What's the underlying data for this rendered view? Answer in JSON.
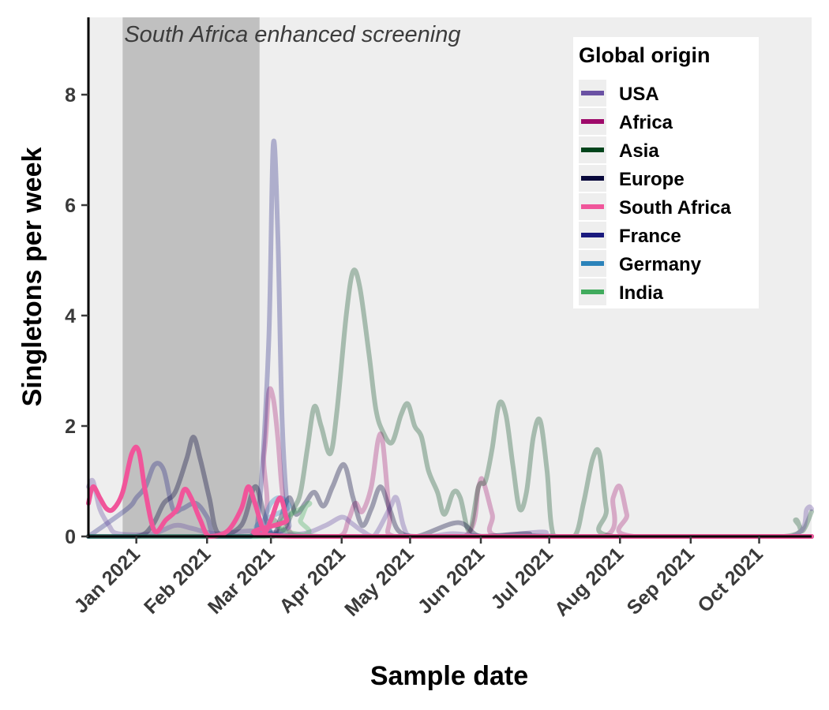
{
  "chart_data": {
    "type": "line",
    "title": "",
    "xlabel": "Sample date",
    "ylabel": "Singletons per week",
    "x_ticks": [
      "Jan 2021",
      "Feb 2021",
      "Mar 2021",
      "Apr 2021",
      "May 2021",
      "Jun 2021",
      "Jul 2021",
      "Aug 2021",
      "Sep 2021",
      "Oct 2021"
    ],
    "x_tick_dates": [
      "2021-01-01",
      "2021-02-01",
      "2021-03-01",
      "2021-04-01",
      "2021-05-01",
      "2021-06-01",
      "2021-07-01",
      "2021-08-01",
      "2021-09-01",
      "2021-10-01"
    ],
    "xlim": [
      "2020-12-11",
      "2021-10-24"
    ],
    "y_ticks": [
      0,
      2,
      4,
      6,
      8
    ],
    "ylim": [
      0,
      9.4
    ],
    "grid": false,
    "background_color": "#eeeeee",
    "legend": {
      "title": "Global origin",
      "position": "top-right"
    },
    "annotations": [
      {
        "text": "South Africa enhanced screening",
        "type": "shaded-region",
        "x_range": [
          "2020-12-26",
          "2021-02-24"
        ],
        "color": "#c0c0c0"
      }
    ],
    "series": [
      {
        "name": "USA",
        "color": "#6a51a3",
        "opacity": 0.35,
        "points": [
          [
            "2020-12-11",
            0.9
          ],
          [
            "2020-12-13",
            1.0
          ],
          [
            "2020-12-16",
            0.5
          ],
          [
            "2020-12-20",
            0.2
          ],
          [
            "2020-12-24",
            0.05
          ],
          [
            "2021-01-08",
            0.05
          ],
          [
            "2021-01-18",
            0.2
          ],
          [
            "2021-01-25",
            0.15
          ],
          [
            "2021-02-05",
            0.05
          ],
          [
            "2021-02-20",
            0.1
          ],
          [
            "2021-03-01",
            0.05
          ],
          [
            "2021-03-15",
            0.05
          ],
          [
            "2021-03-25",
            0.2
          ],
          [
            "2021-04-01",
            0.35
          ],
          [
            "2021-04-05",
            0.25
          ],
          [
            "2021-04-10",
            0.1
          ],
          [
            "2021-04-15",
            0.0
          ],
          [
            "2021-04-22",
            0.5
          ],
          [
            "2021-04-25",
            0.7
          ],
          [
            "2021-04-28",
            0.2
          ],
          [
            "2021-05-01",
            0.0
          ],
          [
            "2021-05-10",
            0.0
          ],
          [
            "2021-05-20",
            0.05
          ],
          [
            "2021-06-05",
            0.0
          ],
          [
            "2021-06-28",
            0.08
          ],
          [
            "2021-07-05",
            0.0
          ],
          [
            "2021-09-01",
            0.0
          ],
          [
            "2021-10-15",
            0.0
          ],
          [
            "2021-10-22",
            0.5
          ],
          [
            "2021-10-24",
            0.5
          ]
        ]
      },
      {
        "name": "Africa",
        "color": "#9e0a6a",
        "opacity": 0.3,
        "points": [
          [
            "2020-12-11",
            0.0
          ],
          [
            "2021-02-20",
            0.0
          ],
          [
            "2021-02-26",
            1.5
          ],
          [
            "2021-02-28",
            2.6
          ],
          [
            "2021-03-02",
            2.5
          ],
          [
            "2021-03-04",
            1.8
          ],
          [
            "2021-03-06",
            0.8
          ],
          [
            "2021-03-09",
            0.1
          ],
          [
            "2021-03-15",
            0.0
          ],
          [
            "2021-03-31",
            0.0
          ],
          [
            "2021-04-04",
            0.3
          ],
          [
            "2021-04-07",
            0.6
          ],
          [
            "2021-04-10",
            0.45
          ],
          [
            "2021-04-14",
            0.9
          ],
          [
            "2021-04-17",
            1.75
          ],
          [
            "2021-04-19",
            1.7
          ],
          [
            "2021-04-22",
            0.4
          ],
          [
            "2021-04-24",
            0.0
          ],
          [
            "2021-05-25",
            0.0
          ],
          [
            "2021-05-31",
            0.9
          ],
          [
            "2021-06-02",
            1.0
          ],
          [
            "2021-06-06",
            0.4
          ],
          [
            "2021-06-09",
            0.0
          ],
          [
            "2021-07-25",
            0.0
          ],
          [
            "2021-07-29",
            0.7
          ],
          [
            "2021-08-01",
            0.9
          ],
          [
            "2021-08-04",
            0.4
          ],
          [
            "2021-08-07",
            0.0
          ],
          [
            "2021-10-24",
            0.0
          ]
        ]
      },
      {
        "name": "Asia",
        "color": "#00441b",
        "opacity": 0.3,
        "points": [
          [
            "2020-12-11",
            0.0
          ],
          [
            "2021-02-26",
            0.0
          ],
          [
            "2021-03-02",
            0.3
          ],
          [
            "2021-03-06",
            0.1
          ],
          [
            "2021-03-11",
            0.5
          ],
          [
            "2021-03-14",
            0.8
          ],
          [
            "2021-03-17",
            1.6
          ],
          [
            "2021-03-20",
            2.35
          ],
          [
            "2021-03-23",
            2.0
          ],
          [
            "2021-03-27",
            1.5
          ],
          [
            "2021-03-30",
            2.3
          ],
          [
            "2021-04-03",
            4.0
          ],
          [
            "2021-04-06",
            4.8
          ],
          [
            "2021-04-09",
            4.5
          ],
          [
            "2021-04-13",
            3.3
          ],
          [
            "2021-04-16",
            2.3
          ],
          [
            "2021-04-19",
            1.9
          ],
          [
            "2021-04-23",
            1.7
          ],
          [
            "2021-04-27",
            2.2
          ],
          [
            "2021-04-30",
            2.4
          ],
          [
            "2021-05-03",
            2.0
          ],
          [
            "2021-05-06",
            1.8
          ],
          [
            "2021-05-09",
            1.2
          ],
          [
            "2021-05-13",
            0.8
          ],
          [
            "2021-05-16",
            0.4
          ],
          [
            "2021-05-20",
            0.8
          ],
          [
            "2021-05-23",
            0.7
          ],
          [
            "2021-05-27",
            0.1
          ],
          [
            "2021-05-31",
            0.9
          ],
          [
            "2021-06-03",
            1.0
          ],
          [
            "2021-06-06",
            1.6
          ],
          [
            "2021-06-09",
            2.4
          ],
          [
            "2021-06-12",
            2.2
          ],
          [
            "2021-06-15",
            1.3
          ],
          [
            "2021-06-18",
            0.5
          ],
          [
            "2021-06-21",
            0.8
          ],
          [
            "2021-06-24",
            1.8
          ],
          [
            "2021-06-27",
            2.1
          ],
          [
            "2021-06-30",
            1.2
          ],
          [
            "2021-07-03",
            0.0
          ],
          [
            "2021-07-12",
            0.0
          ],
          [
            "2021-07-16",
            0.6
          ],
          [
            "2021-07-20",
            1.4
          ],
          [
            "2021-07-23",
            1.5
          ],
          [
            "2021-07-26",
            0.5
          ],
          [
            "2021-07-29",
            0.0
          ],
          [
            "2021-10-12",
            0.0
          ],
          [
            "2021-10-17",
            0.3
          ],
          [
            "2021-10-20",
            0.1
          ],
          [
            "2021-10-24",
            0.45
          ]
        ]
      },
      {
        "name": "Europe",
        "color": "#08083b",
        "opacity": 0.35,
        "points": [
          [
            "2020-12-11",
            0.0
          ],
          [
            "2021-01-01",
            0.0
          ],
          [
            "2021-01-08",
            0.2
          ],
          [
            "2021-01-13",
            0.6
          ],
          [
            "2021-01-18",
            0.8
          ],
          [
            "2021-01-23",
            1.4
          ],
          [
            "2021-01-26",
            1.8
          ],
          [
            "2021-01-29",
            1.4
          ],
          [
            "2021-02-02",
            0.7
          ],
          [
            "2021-02-06",
            0.05
          ],
          [
            "2021-02-16",
            0.2
          ],
          [
            "2021-02-22",
            0.9
          ],
          [
            "2021-02-26",
            0.4
          ],
          [
            "2021-03-02",
            0.0
          ],
          [
            "2021-03-05",
            0.3
          ],
          [
            "2021-03-09",
            0.7
          ],
          [
            "2021-03-12",
            0.4
          ],
          [
            "2021-03-16",
            0.6
          ],
          [
            "2021-03-20",
            0.8
          ],
          [
            "2021-03-24",
            0.55
          ],
          [
            "2021-03-28",
            0.9
          ],
          [
            "2021-04-02",
            1.3
          ],
          [
            "2021-04-06",
            0.7
          ],
          [
            "2021-04-10",
            0.2
          ],
          [
            "2021-04-14",
            0.5
          ],
          [
            "2021-04-18",
            0.9
          ],
          [
            "2021-04-22",
            0.5
          ],
          [
            "2021-04-26",
            0.1
          ],
          [
            "2021-05-04",
            0.0
          ],
          [
            "2021-05-22",
            0.25
          ],
          [
            "2021-06-01",
            0.0
          ],
          [
            "2021-06-21",
            0.05
          ],
          [
            "2021-07-04",
            0.0
          ],
          [
            "2021-10-24",
            0.0
          ]
        ]
      },
      {
        "name": "South Africa",
        "color": "#f0559a",
        "opacity": 1.0,
        "points": [
          [
            "2020-12-11",
            0.6
          ],
          [
            "2020-12-13",
            0.9
          ],
          [
            "2020-12-16",
            0.7
          ],
          [
            "2020-12-19",
            0.5
          ],
          [
            "2020-12-22",
            0.5
          ],
          [
            "2020-12-26",
            0.8
          ],
          [
            "2020-12-30",
            1.5
          ],
          [
            "2021-01-02",
            1.55
          ],
          [
            "2021-01-05",
            0.8
          ],
          [
            "2021-01-09",
            0.1
          ],
          [
            "2021-01-14",
            0.3
          ],
          [
            "2021-01-19",
            0.5
          ],
          [
            "2021-01-22",
            0.85
          ],
          [
            "2021-01-25",
            0.7
          ],
          [
            "2021-01-29",
            0.3
          ],
          [
            "2021-02-02",
            0.0
          ],
          [
            "2021-02-10",
            0.1
          ],
          [
            "2021-02-16",
            0.5
          ],
          [
            "2021-02-19",
            0.9
          ],
          [
            "2021-02-22",
            0.6
          ],
          [
            "2021-02-26",
            0.1
          ],
          [
            "2021-03-01",
            0.3
          ],
          [
            "2021-03-05",
            0.7
          ],
          [
            "2021-03-08",
            0.3
          ],
          [
            "2021-03-11",
            0.0
          ],
          [
            "2021-10-24",
            0.0
          ]
        ]
      },
      {
        "name": "France",
        "color": "#1a1a7e",
        "opacity": 0.3,
        "points": [
          [
            "2020-12-11",
            0.0
          ],
          [
            "2020-12-28",
            0.5
          ],
          [
            "2021-01-01",
            0.7
          ],
          [
            "2021-01-05",
            0.9
          ],
          [
            "2021-01-09",
            1.3
          ],
          [
            "2021-01-13",
            1.2
          ],
          [
            "2021-01-17",
            0.5
          ],
          [
            "2021-01-21",
            0.5
          ],
          [
            "2021-01-27",
            0.6
          ],
          [
            "2021-02-01",
            0.35
          ],
          [
            "2021-02-05",
            0.0
          ],
          [
            "2021-02-20",
            0.0
          ],
          [
            "2021-02-24",
            0.6
          ],
          [
            "2021-02-28",
            3.5
          ],
          [
            "2021-03-02",
            7.1
          ],
          [
            "2021-03-04",
            5.5
          ],
          [
            "2021-03-06",
            2.0
          ],
          [
            "2021-03-09",
            0.2
          ],
          [
            "2021-03-12",
            0.0
          ],
          [
            "2021-10-24",
            0.0
          ]
        ]
      },
      {
        "name": "Germany",
        "color": "#2b83ba",
        "opacity": 0.35,
        "points": [
          [
            "2020-12-11",
            0.0
          ],
          [
            "2021-02-22",
            0.0
          ],
          [
            "2021-02-26",
            0.3
          ],
          [
            "2021-03-01",
            0.6
          ],
          [
            "2021-03-05",
            0.7
          ],
          [
            "2021-03-09",
            0.55
          ],
          [
            "2021-03-12",
            0.0
          ],
          [
            "2021-10-24",
            0.0
          ]
        ]
      },
      {
        "name": "India",
        "color": "#41ab5d",
        "opacity": 0.35,
        "points": [
          [
            "2020-12-11",
            0.0
          ],
          [
            "2021-03-10",
            0.0
          ],
          [
            "2021-03-14",
            0.3
          ],
          [
            "2021-03-18",
            0.6
          ],
          [
            "2021-03-22",
            0.0
          ],
          [
            "2021-10-24",
            0.0
          ]
        ]
      }
    ]
  }
}
